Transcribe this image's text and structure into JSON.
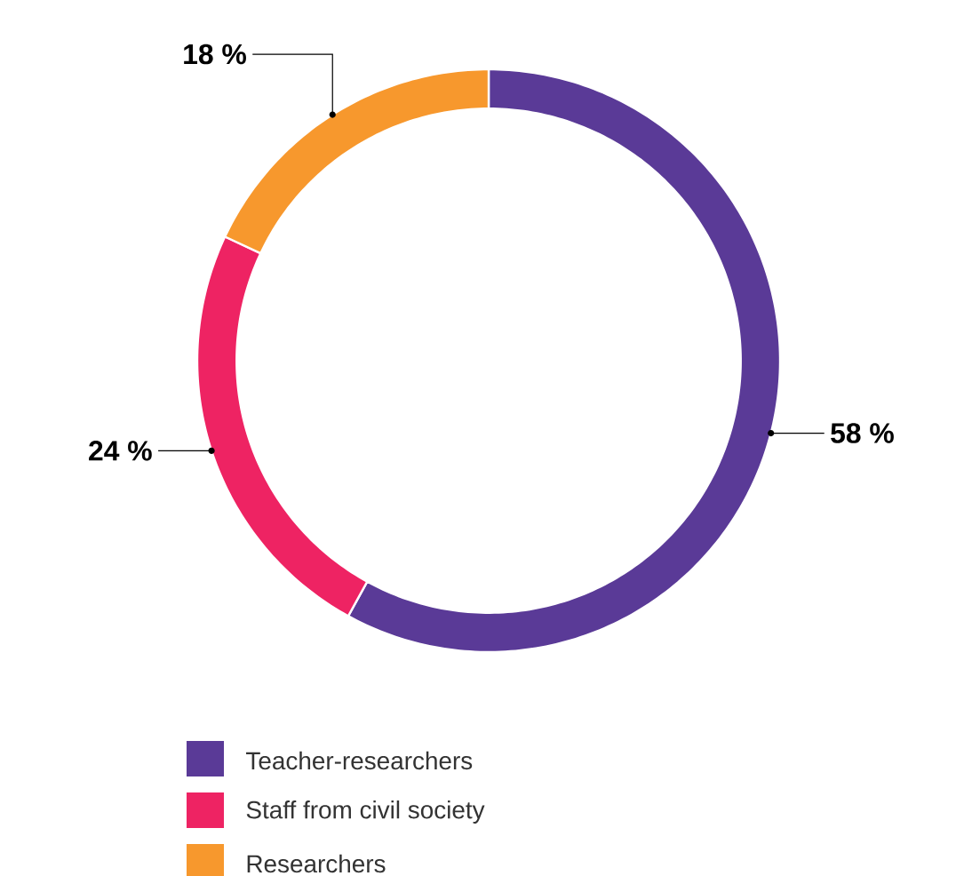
{
  "chart_data": {
    "type": "donut",
    "categories": [
      "Teacher-researchers",
      "Staff from civil society",
      "Researchers"
    ],
    "values": [
      58,
      24,
      18
    ],
    "colors": [
      "#5a3a97",
      "#ee2363",
      "#f7982d"
    ],
    "value_labels": [
      "58 %",
      "24 %",
      "18 %"
    ],
    "legend": "bottom left"
  }
}
